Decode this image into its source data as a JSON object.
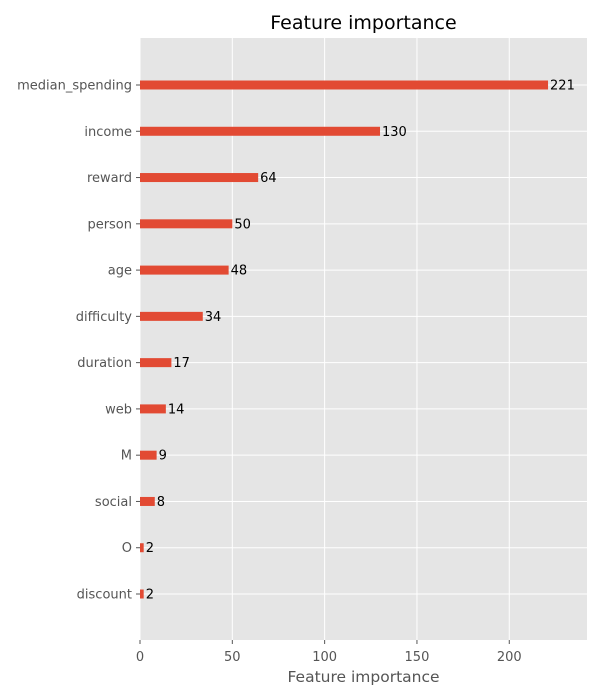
{
  "chart_data": {
    "type": "bar",
    "orientation": "horizontal",
    "title": "Feature importance",
    "xlabel": "Feature importance",
    "ylabel": "",
    "categories": [
      "median_spending",
      "income",
      "reward",
      "person",
      "age",
      "difficulty",
      "duration",
      "web",
      "M",
      "social",
      "O",
      "discount"
    ],
    "values": [
      221,
      130,
      64,
      50,
      48,
      34,
      17,
      14,
      9,
      8,
      2,
      2
    ],
    "data_labels": [
      "221",
      "130",
      "64",
      "50",
      "48",
      "34",
      "17",
      "14",
      "9",
      "8",
      "2",
      "2"
    ],
    "xlim": [
      0,
      242.1
    ],
    "xticks": [
      0,
      50,
      100,
      150,
      200
    ],
    "xtick_labels": [
      "0",
      "50",
      "100",
      "150",
      "200"
    ],
    "grid": true,
    "style": "ggplot",
    "colors": {
      "bar": "#E24A33",
      "plot_background": "#E5E5E5",
      "grid": "#FFFFFF"
    }
  }
}
